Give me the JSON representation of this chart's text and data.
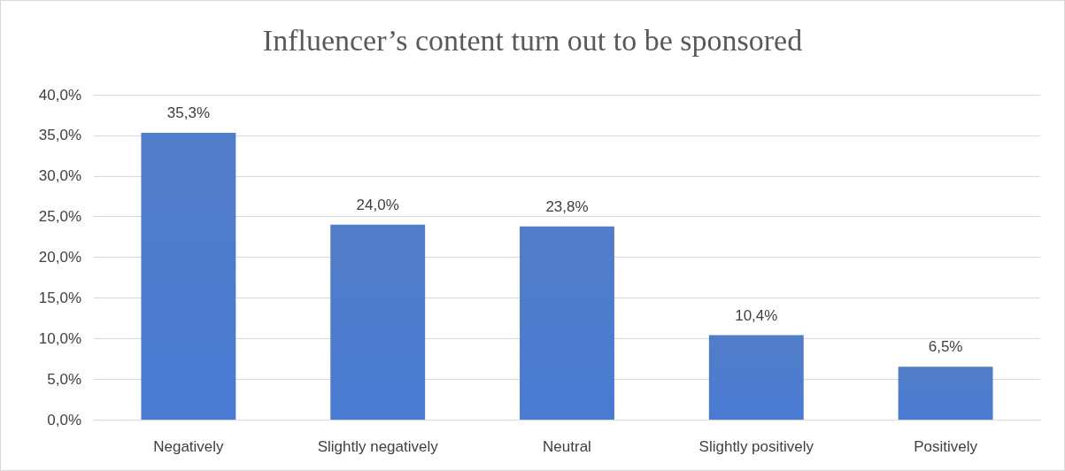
{
  "chart_data": {
    "type": "bar",
    "title": "Influencer’s content turn out to be sponsored",
    "categories": [
      "Negatively",
      "Slightly negatively",
      "Neutral",
      "Slightly positively",
      "Positively"
    ],
    "values": [
      35.3,
      24.0,
      23.8,
      10.4,
      6.5
    ],
    "value_labels": [
      "35,3%",
      "24,0%",
      "23,8%",
      "10,4%",
      "6,5%"
    ],
    "color": "#4472c4",
    "ylim": [
      0,
      40
    ],
    "yticks": [
      {
        "value": 0,
        "label": "0,0%"
      },
      {
        "value": 5,
        "label": "5,0%"
      },
      {
        "value": 10,
        "label": "10,0%"
      },
      {
        "value": 15,
        "label": "15,0%"
      },
      {
        "value": 20,
        "label": "20,0%"
      },
      {
        "value": 25,
        "label": "25,0%"
      },
      {
        "value": 30,
        "label": "30,0%"
      },
      {
        "value": 35,
        "label": "35,0%"
      },
      {
        "value": 40,
        "label": "40,0%"
      }
    ],
    "grid": "y"
  }
}
